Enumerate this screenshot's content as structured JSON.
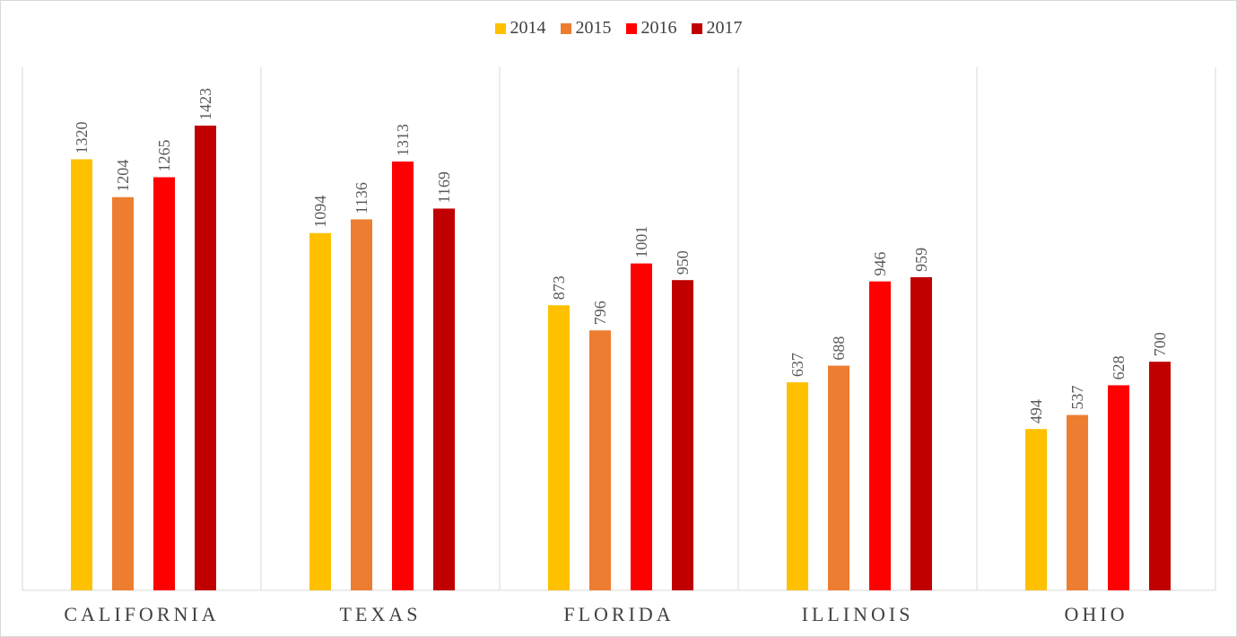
{
  "chart_data": {
    "type": "bar",
    "categories": [
      "CALIFORNIA",
      "TEXAS",
      "FLORIDA",
      "ILLINOIS",
      "OHIO"
    ],
    "series": [
      {
        "name": "2014",
        "color": "#FFC000",
        "values": [
          1320,
          1094,
          873,
          637,
          494
        ]
      },
      {
        "name": "2015",
        "color": "#ED7D31",
        "values": [
          1204,
          1136,
          796,
          688,
          537
        ]
      },
      {
        "name": "2016",
        "color": "#FF0000",
        "values": [
          1265,
          1313,
          1001,
          946,
          628
        ]
      },
      {
        "name": "2017",
        "color": "#C00000",
        "values": [
          1423,
          1169,
          950,
          959,
          700
        ]
      }
    ],
    "title": "",
    "xlabel": "",
    "ylabel": "",
    "ylim": [
      0,
      1600
    ],
    "grid": false,
    "category_separators": true,
    "legend_position": "top-center",
    "data_labels": "rotated-vertical"
  }
}
